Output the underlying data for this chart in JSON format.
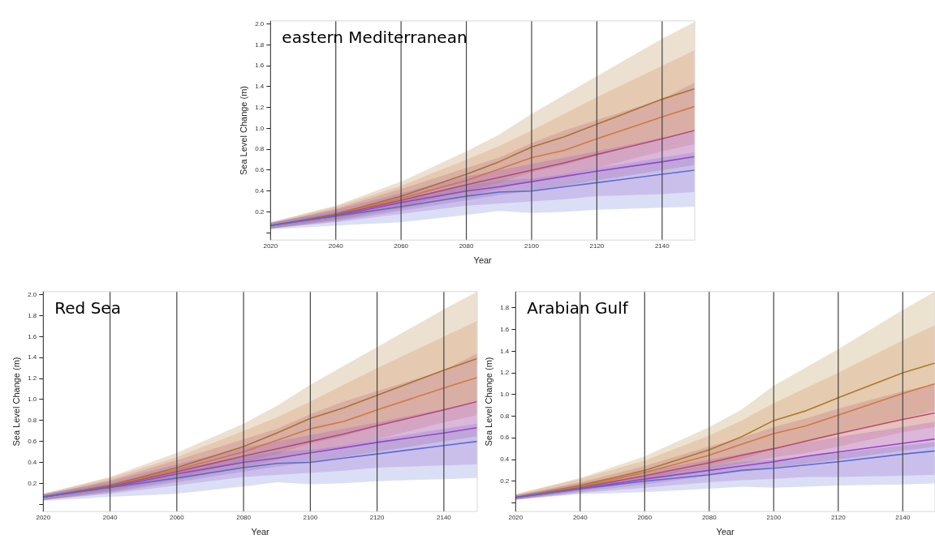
{
  "chart_data": [
    {
      "type": "line",
      "title": "eastern Mediterranean",
      "xlabel": "Year",
      "ylabel": "Sea Level Change (m)",
      "xlim": [
        2020,
        2150
      ],
      "xticks": [
        2020,
        2040,
        2060,
        2080,
        2100,
        2120,
        2140
      ],
      "ylim": [
        -0.07,
        2.03
      ],
      "yticks": [
        {
          "value": 0,
          "label": null
        },
        0.2,
        0.4,
        0.6,
        0.8,
        {
          "value": 1,
          "label": "1.0"
        },
        1.2,
        1.4,
        1.6,
        1.8,
        {
          "value": 2,
          "label": "2.0"
        }
      ],
      "x": [
        2020,
        2040,
        2060,
        2080,
        2090,
        2100,
        2110,
        2120,
        2140,
        2150
      ],
      "legend": false,
      "grid": false,
      "ref_lines": [
        {
          "axis": "x",
          "value": 2040,
          "color": "#444444"
        },
        {
          "axis": "x",
          "value": 2060,
          "color": "#444444"
        },
        {
          "axis": "x",
          "value": 2080,
          "color": "#444444"
        },
        {
          "axis": "x",
          "value": 2100,
          "color": "#444444"
        },
        {
          "axis": "x",
          "value": 2120,
          "color": "#444444"
        },
        {
          "axis": "x",
          "value": 2140,
          "color": "#444444"
        }
      ],
      "series": [
        {
          "color": "#a8742e",
          "values": [
            0.07,
            0.18,
            0.35,
            0.56,
            0.68,
            0.82,
            0.92,
            1.04,
            1.28,
            1.38
          ],
          "upper": [
            0.1,
            0.26,
            0.49,
            0.78,
            0.94,
            1.14,
            1.32,
            1.5,
            1.86,
            2.02
          ],
          "lower": [
            0.04,
            0.13,
            0.25,
            0.4,
            0.48,
            0.58,
            0.65,
            0.74,
            0.9,
            0.98
          ]
        },
        {
          "color": "#cc7a42",
          "values": [
            0.07,
            0.17,
            0.33,
            0.5,
            0.61,
            0.72,
            0.79,
            0.9,
            1.11,
            1.21
          ],
          "upper": [
            0.1,
            0.25,
            0.45,
            0.7,
            0.83,
            0.98,
            1.14,
            1.3,
            1.6,
            1.75
          ],
          "lower": [
            0.04,
            0.12,
            0.23,
            0.35,
            0.42,
            0.5,
            0.55,
            0.62,
            0.78,
            0.85
          ]
        },
        {
          "color": "#b04c78",
          "values": [
            0.07,
            0.17,
            0.31,
            0.46,
            0.53,
            0.6,
            0.67,
            0.75,
            0.9,
            0.98
          ],
          "upper": [
            0.09,
            0.23,
            0.42,
            0.62,
            0.72,
            0.86,
            0.98,
            1.08,
            1.28,
            1.44
          ],
          "lower": [
            0.04,
            0.11,
            0.21,
            0.31,
            0.36,
            0.4,
            0.45,
            0.5,
            0.6,
            0.65
          ]
        },
        {
          "color": "#9a44c8",
          "values": [
            0.07,
            0.16,
            0.29,
            0.4,
            0.44,
            0.49,
            0.54,
            0.59,
            0.68,
            0.73
          ],
          "upper": [
            0.09,
            0.22,
            0.38,
            0.54,
            0.6,
            0.66,
            0.72,
            0.78,
            0.91,
            0.97
          ],
          "lower": [
            0.04,
            0.1,
            0.18,
            0.26,
            0.28,
            0.3,
            0.32,
            0.35,
            0.37,
            0.39
          ]
        },
        {
          "color": "#5a6cd2",
          "values": [
            0.07,
            0.16,
            0.25,
            0.35,
            0.39,
            0.4,
            0.44,
            0.48,
            0.56,
            0.6
          ],
          "upper": [
            0.1,
            0.2,
            0.33,
            0.45,
            0.5,
            0.52,
            0.56,
            0.62,
            0.72,
            0.77
          ],
          "lower": [
            0.03,
            0.07,
            0.1,
            0.17,
            0.21,
            0.19,
            0.2,
            0.22,
            0.24,
            0.25
          ]
        }
      ]
    },
    {
      "type": "line",
      "title": "Red Sea",
      "xlabel": "Year",
      "ylabel": "Sea Level Change (m)",
      "xlim": [
        2020,
        2150
      ],
      "xticks": [
        2020,
        2040,
        2060,
        2080,
        2100,
        2120,
        2140
      ],
      "ylim": [
        -0.07,
        2.03
      ],
      "yticks": [
        {
          "value": 0,
          "label": null
        },
        0.2,
        0.4,
        0.6,
        0.8,
        {
          "value": 1,
          "label": "1.0"
        },
        1.2,
        1.4,
        1.6,
        1.8,
        {
          "value": 2,
          "label": "2.0"
        }
      ],
      "x": [
        2020,
        2040,
        2060,
        2080,
        2090,
        2100,
        2110,
        2120,
        2140,
        2150
      ],
      "legend": false,
      "grid": false,
      "ref_lines": [
        {
          "axis": "x",
          "value": 2040,
          "color": "#444444"
        },
        {
          "axis": "x",
          "value": 2060,
          "color": "#444444"
        },
        {
          "axis": "x",
          "value": 2080,
          "color": "#444444"
        },
        {
          "axis": "x",
          "value": 2100,
          "color": "#444444"
        },
        {
          "axis": "x",
          "value": 2120,
          "color": "#444444"
        },
        {
          "axis": "x",
          "value": 2140,
          "color": "#444444"
        }
      ],
      "series": [
        {
          "color": "#a8742e",
          "values": [
            0.07,
            0.18,
            0.35,
            0.55,
            0.68,
            0.82,
            0.92,
            1.04,
            1.28,
            1.39
          ],
          "upper": [
            0.1,
            0.26,
            0.49,
            0.77,
            0.94,
            1.14,
            1.32,
            1.5,
            1.86,
            2.03
          ],
          "lower": [
            0.04,
            0.13,
            0.25,
            0.4,
            0.48,
            0.58,
            0.65,
            0.74,
            0.9,
            0.98
          ]
        },
        {
          "color": "#cc7a42",
          "values": [
            0.07,
            0.17,
            0.33,
            0.5,
            0.61,
            0.72,
            0.79,
            0.9,
            1.11,
            1.21
          ],
          "upper": [
            0.1,
            0.25,
            0.45,
            0.7,
            0.83,
            0.98,
            1.14,
            1.3,
            1.6,
            1.75
          ],
          "lower": [
            0.04,
            0.12,
            0.23,
            0.35,
            0.42,
            0.5,
            0.55,
            0.62,
            0.78,
            0.85
          ]
        },
        {
          "color": "#b04c78",
          "values": [
            0.07,
            0.17,
            0.31,
            0.46,
            0.53,
            0.6,
            0.67,
            0.75,
            0.9,
            0.98
          ],
          "upper": [
            0.09,
            0.23,
            0.42,
            0.62,
            0.72,
            0.86,
            0.98,
            1.08,
            1.28,
            1.44
          ],
          "lower": [
            0.04,
            0.11,
            0.21,
            0.31,
            0.36,
            0.4,
            0.45,
            0.5,
            0.6,
            0.65
          ]
        },
        {
          "color": "#9a44c8",
          "values": [
            0.07,
            0.16,
            0.29,
            0.4,
            0.44,
            0.49,
            0.54,
            0.59,
            0.68,
            0.73
          ],
          "upper": [
            0.09,
            0.22,
            0.38,
            0.54,
            0.6,
            0.66,
            0.72,
            0.78,
            0.91,
            0.97
          ],
          "lower": [
            0.04,
            0.1,
            0.18,
            0.26,
            0.28,
            0.3,
            0.32,
            0.35,
            0.37,
            0.38
          ]
        },
        {
          "color": "#5a6cd2",
          "values": [
            0.07,
            0.16,
            0.25,
            0.35,
            0.39,
            0.4,
            0.44,
            0.48,
            0.56,
            0.6
          ],
          "upper": [
            0.1,
            0.2,
            0.33,
            0.45,
            0.5,
            0.52,
            0.56,
            0.62,
            0.72,
            0.77
          ],
          "lower": [
            0.03,
            0.07,
            0.1,
            0.17,
            0.21,
            0.19,
            0.2,
            0.22,
            0.24,
            0.25
          ]
        }
      ]
    },
    {
      "type": "line",
      "title": "Arabian Gulf",
      "xlabel": "Year",
      "ylabel": "Sea Level Change (m)",
      "xlim": [
        2020,
        2150
      ],
      "xticks": [
        2020,
        2040,
        2060,
        2080,
        2100,
        2120,
        2140
      ],
      "ylim": [
        -0.08,
        1.95
      ],
      "yticks": [
        {
          "value": 0,
          "label": null
        },
        0.2,
        0.4,
        0.6,
        0.8,
        {
          "value": 1,
          "label": "1.0"
        },
        1.2,
        1.4,
        1.6,
        1.8
      ],
      "x": [
        2020,
        2040,
        2060,
        2080,
        2090,
        2100,
        2110,
        2120,
        2140,
        2150
      ],
      "legend": false,
      "grid": false,
      "ref_lines": [
        {
          "axis": "x",
          "value": 2040,
          "color": "#444444"
        },
        {
          "axis": "x",
          "value": 2060,
          "color": "#444444"
        },
        {
          "axis": "x",
          "value": 2080,
          "color": "#444444"
        },
        {
          "axis": "x",
          "value": 2100,
          "color": "#444444"
        },
        {
          "axis": "x",
          "value": 2120,
          "color": "#444444"
        },
        {
          "axis": "x",
          "value": 2140,
          "color": "#444444"
        }
      ],
      "series": [
        {
          "color": "#a87a2a",
          "values": [
            0.05,
            0.16,
            0.3,
            0.49,
            0.61,
            0.76,
            0.85,
            0.97,
            1.2,
            1.29
          ],
          "upper": [
            0.08,
            0.23,
            0.43,
            0.7,
            0.86,
            1.08,
            1.25,
            1.42,
            1.78,
            1.95
          ],
          "lower": [
            0.03,
            0.12,
            0.22,
            0.34,
            0.4,
            0.5,
            0.56,
            0.63,
            0.78,
            0.85
          ]
        },
        {
          "color": "#cc7a42",
          "values": [
            0.05,
            0.15,
            0.28,
            0.44,
            0.54,
            0.64,
            0.71,
            0.81,
            1.01,
            1.1
          ],
          "upper": [
            0.08,
            0.22,
            0.39,
            0.62,
            0.76,
            0.92,
            1.06,
            1.2,
            1.5,
            1.64
          ],
          "lower": [
            0.03,
            0.11,
            0.2,
            0.31,
            0.36,
            0.42,
            0.46,
            0.52,
            0.65,
            0.7
          ]
        },
        {
          "color": "#b84c6c",
          "values": [
            0.05,
            0.14,
            0.25,
            0.37,
            0.44,
            0.5,
            0.57,
            0.64,
            0.77,
            0.83
          ],
          "upper": [
            0.07,
            0.19,
            0.34,
            0.52,
            0.6,
            0.7,
            0.78,
            0.87,
            1.03,
            1.1
          ],
          "lower": [
            0.03,
            0.1,
            0.17,
            0.25,
            0.29,
            0.33,
            0.36,
            0.4,
            0.48,
            0.52
          ]
        },
        {
          "color": "#9a44c8",
          "values": [
            0.05,
            0.13,
            0.22,
            0.3,
            0.34,
            0.38,
            0.43,
            0.47,
            0.55,
            0.59
          ],
          "upper": [
            0.07,
            0.18,
            0.29,
            0.4,
            0.45,
            0.51,
            0.56,
            0.61,
            0.7,
            0.75
          ],
          "lower": [
            0.03,
            0.09,
            0.14,
            0.19,
            0.21,
            0.22,
            0.24,
            0.24,
            0.25,
            0.26
          ]
        },
        {
          "color": "#5a6cd2",
          "values": [
            0.05,
            0.13,
            0.2,
            0.26,
            0.3,
            0.32,
            0.35,
            0.38,
            0.45,
            0.48
          ],
          "upper": [
            0.07,
            0.16,
            0.25,
            0.34,
            0.38,
            0.4,
            0.43,
            0.46,
            0.53,
            0.56
          ],
          "lower": [
            0.03,
            0.08,
            0.1,
            0.13,
            0.15,
            0.14,
            0.15,
            0.16,
            0.17,
            0.18
          ]
        }
      ]
    }
  ]
}
